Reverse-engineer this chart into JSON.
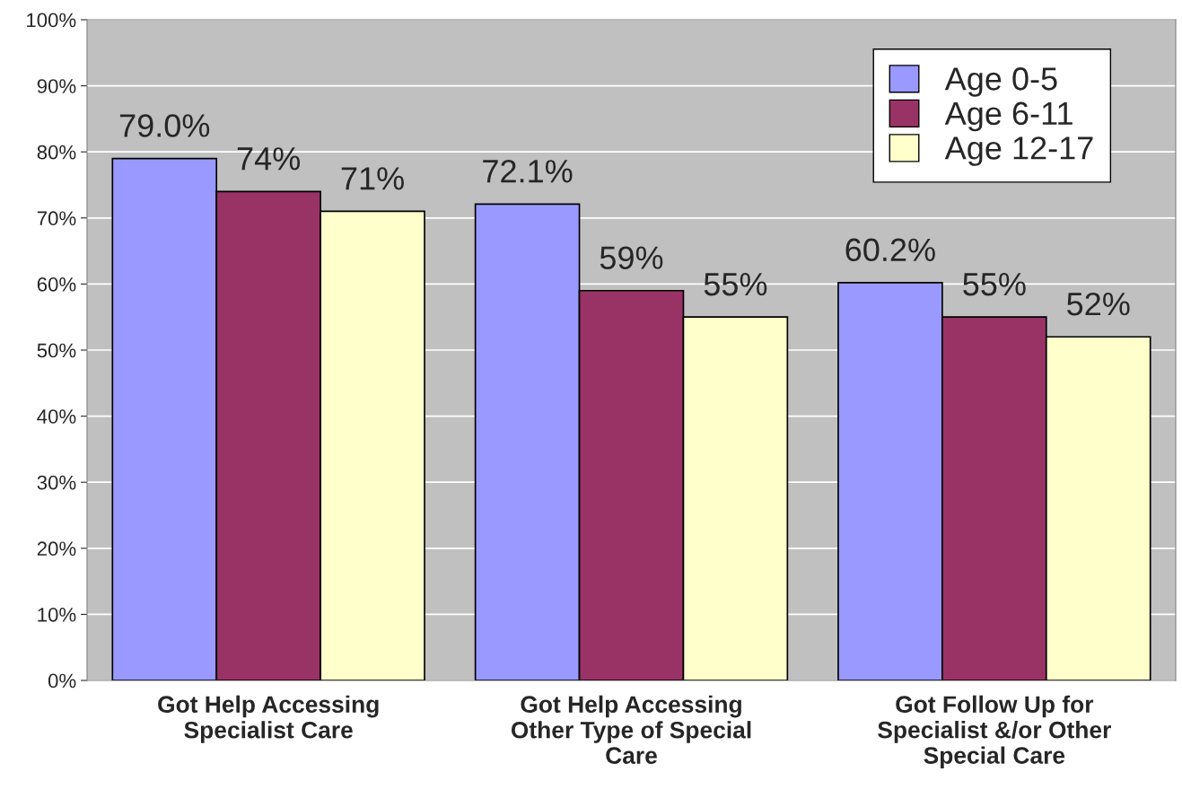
{
  "chart_data": {
    "type": "bar",
    "categories": [
      "Got Help Accessing\nSpecialist Care",
      "Got Help Accessing\nOther Type of Special\nCare",
      "Got Follow Up for\nSpecialist &/or Other\nSpecial Care"
    ],
    "series": [
      {
        "name": "Age 0-5",
        "color": "#9999ff",
        "values": [
          79.0,
          72.1,
          60.2
        ],
        "value_labels": [
          "79.0%",
          "72.1%",
          "60.2%"
        ]
      },
      {
        "name": "Age 6-11",
        "color": "#993366",
        "values": [
          74,
          59,
          55
        ],
        "value_labels": [
          "74%",
          "59%",
          "55%"
        ]
      },
      {
        "name": "Age 12-17",
        "color": "#ffffcc",
        "values": [
          71,
          55,
          52
        ],
        "value_labels": [
          "71%",
          "55%",
          "52%"
        ]
      }
    ],
    "ylim": [
      0,
      100
    ],
    "yticks": [
      {
        "value": 0,
        "label": "0%"
      },
      {
        "value": 10,
        "label": "10%"
      },
      {
        "value": 20,
        "label": "20%"
      },
      {
        "value": 30,
        "label": "30%"
      },
      {
        "value": 40,
        "label": "40%"
      },
      {
        "value": 50,
        "label": "50%"
      },
      {
        "value": 60,
        "label": "60%"
      },
      {
        "value": 70,
        "label": "70%"
      },
      {
        "value": 80,
        "label": "80%"
      },
      {
        "value": 90,
        "label": "90%"
      },
      {
        "value": 100,
        "label": "100%"
      }
    ],
    "grid": "y",
    "legend": "top right"
  }
}
